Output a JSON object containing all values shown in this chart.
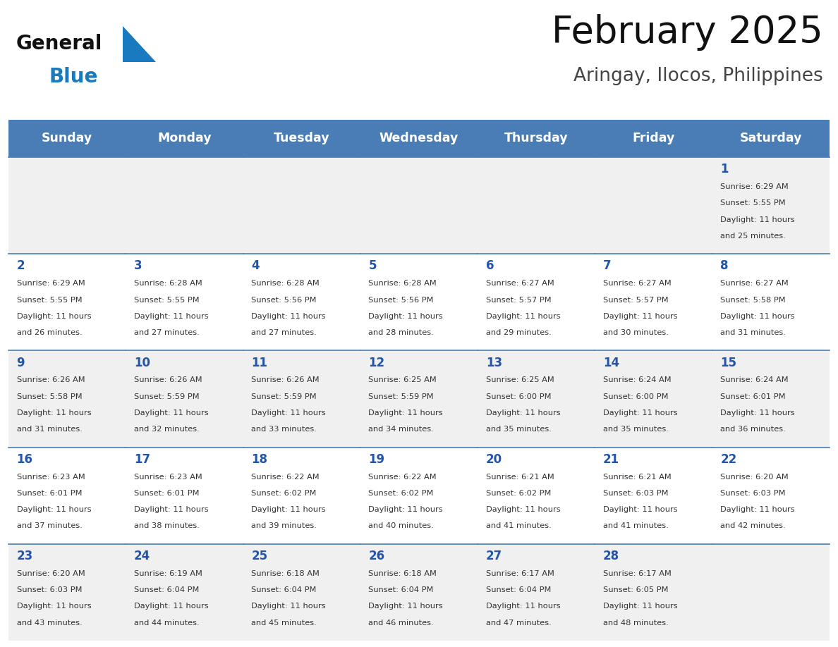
{
  "title": "February 2025",
  "subtitle": "Aringay, Ilocos, Philippines",
  "days_of_week": [
    "Sunday",
    "Monday",
    "Tuesday",
    "Wednesday",
    "Thursday",
    "Friday",
    "Saturday"
  ],
  "header_bg": "#4a7db5",
  "header_text": "#ffffff",
  "row_bg_even": "#f0f0f0",
  "row_bg_odd": "#ffffff",
  "cell_border_color": "#4a7db5",
  "day_number_color": "#2255aa",
  "info_text_color": "#333333",
  "title_color": "#111111",
  "subtitle_color": "#444444",
  "logo_general_color": "#111111",
  "logo_blue_color": "#1a7abf",
  "logo_triangle_color": "#1a7abf",
  "calendar_data": [
    [
      null,
      null,
      null,
      null,
      null,
      null,
      {
        "day": 1,
        "sunrise": "6:29 AM",
        "sunset": "5:55 PM",
        "daylight_h": "11 hours",
        "daylight_m": "and 25 minutes."
      }
    ],
    [
      {
        "day": 2,
        "sunrise": "6:29 AM",
        "sunset": "5:55 PM",
        "daylight_h": "11 hours",
        "daylight_m": "and 26 minutes."
      },
      {
        "day": 3,
        "sunrise": "6:28 AM",
        "sunset": "5:55 PM",
        "daylight_h": "11 hours",
        "daylight_m": "and 27 minutes."
      },
      {
        "day": 4,
        "sunrise": "6:28 AM",
        "sunset": "5:56 PM",
        "daylight_h": "11 hours",
        "daylight_m": "and 27 minutes."
      },
      {
        "day": 5,
        "sunrise": "6:28 AM",
        "sunset": "5:56 PM",
        "daylight_h": "11 hours",
        "daylight_m": "and 28 minutes."
      },
      {
        "day": 6,
        "sunrise": "6:27 AM",
        "sunset": "5:57 PM",
        "daylight_h": "11 hours",
        "daylight_m": "and 29 minutes."
      },
      {
        "day": 7,
        "sunrise": "6:27 AM",
        "sunset": "5:57 PM",
        "daylight_h": "11 hours",
        "daylight_m": "and 30 minutes."
      },
      {
        "day": 8,
        "sunrise": "6:27 AM",
        "sunset": "5:58 PM",
        "daylight_h": "11 hours",
        "daylight_m": "and 31 minutes."
      }
    ],
    [
      {
        "day": 9,
        "sunrise": "6:26 AM",
        "sunset": "5:58 PM",
        "daylight_h": "11 hours",
        "daylight_m": "and 31 minutes."
      },
      {
        "day": 10,
        "sunrise": "6:26 AM",
        "sunset": "5:59 PM",
        "daylight_h": "11 hours",
        "daylight_m": "and 32 minutes."
      },
      {
        "day": 11,
        "sunrise": "6:26 AM",
        "sunset": "5:59 PM",
        "daylight_h": "11 hours",
        "daylight_m": "and 33 minutes."
      },
      {
        "day": 12,
        "sunrise": "6:25 AM",
        "sunset": "5:59 PM",
        "daylight_h": "11 hours",
        "daylight_m": "and 34 minutes."
      },
      {
        "day": 13,
        "sunrise": "6:25 AM",
        "sunset": "6:00 PM",
        "daylight_h": "11 hours",
        "daylight_m": "and 35 minutes."
      },
      {
        "day": 14,
        "sunrise": "6:24 AM",
        "sunset": "6:00 PM",
        "daylight_h": "11 hours",
        "daylight_m": "and 35 minutes."
      },
      {
        "day": 15,
        "sunrise": "6:24 AM",
        "sunset": "6:01 PM",
        "daylight_h": "11 hours",
        "daylight_m": "and 36 minutes."
      }
    ],
    [
      {
        "day": 16,
        "sunrise": "6:23 AM",
        "sunset": "6:01 PM",
        "daylight_h": "11 hours",
        "daylight_m": "and 37 minutes."
      },
      {
        "day": 17,
        "sunrise": "6:23 AM",
        "sunset": "6:01 PM",
        "daylight_h": "11 hours",
        "daylight_m": "and 38 minutes."
      },
      {
        "day": 18,
        "sunrise": "6:22 AM",
        "sunset": "6:02 PM",
        "daylight_h": "11 hours",
        "daylight_m": "and 39 minutes."
      },
      {
        "day": 19,
        "sunrise": "6:22 AM",
        "sunset": "6:02 PM",
        "daylight_h": "11 hours",
        "daylight_m": "and 40 minutes."
      },
      {
        "day": 20,
        "sunrise": "6:21 AM",
        "sunset": "6:02 PM",
        "daylight_h": "11 hours",
        "daylight_m": "and 41 minutes."
      },
      {
        "day": 21,
        "sunrise": "6:21 AM",
        "sunset": "6:03 PM",
        "daylight_h": "11 hours",
        "daylight_m": "and 41 minutes."
      },
      {
        "day": 22,
        "sunrise": "6:20 AM",
        "sunset": "6:03 PM",
        "daylight_h": "11 hours",
        "daylight_m": "and 42 minutes."
      }
    ],
    [
      {
        "day": 23,
        "sunrise": "6:20 AM",
        "sunset": "6:03 PM",
        "daylight_h": "11 hours",
        "daylight_m": "and 43 minutes."
      },
      {
        "day": 24,
        "sunrise": "6:19 AM",
        "sunset": "6:04 PM",
        "daylight_h": "11 hours",
        "daylight_m": "and 44 minutes."
      },
      {
        "day": 25,
        "sunrise": "6:18 AM",
        "sunset": "6:04 PM",
        "daylight_h": "11 hours",
        "daylight_m": "and 45 minutes."
      },
      {
        "day": 26,
        "sunrise": "6:18 AM",
        "sunset": "6:04 PM",
        "daylight_h": "11 hours",
        "daylight_m": "and 46 minutes."
      },
      {
        "day": 27,
        "sunrise": "6:17 AM",
        "sunset": "6:04 PM",
        "daylight_h": "11 hours",
        "daylight_m": "and 47 minutes."
      },
      {
        "day": 28,
        "sunrise": "6:17 AM",
        "sunset": "6:05 PM",
        "daylight_h": "11 hours",
        "daylight_m": "and 48 minutes."
      },
      null
    ]
  ]
}
